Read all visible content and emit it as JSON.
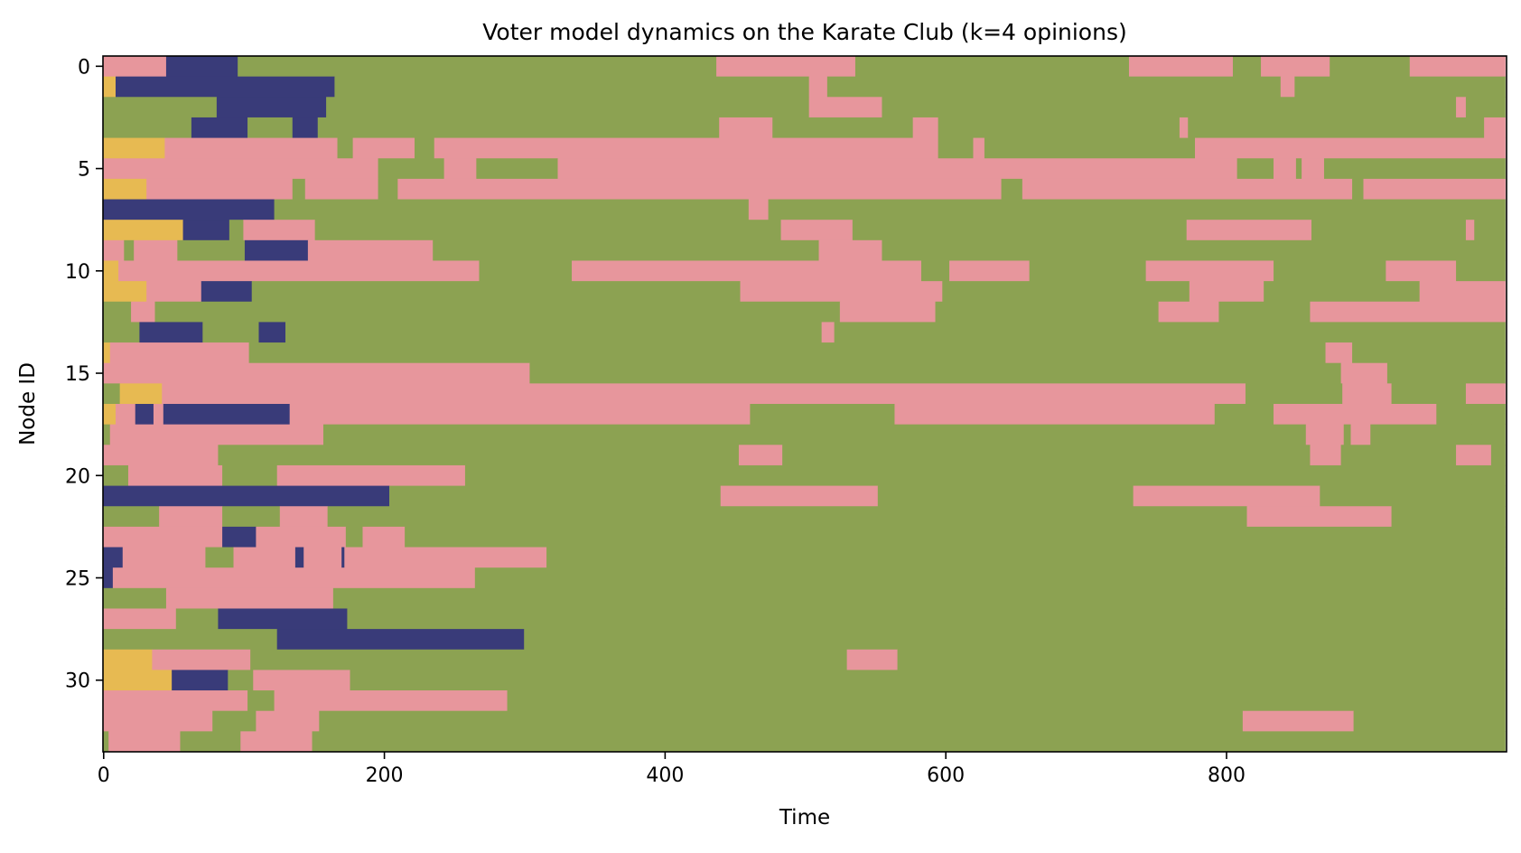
{
  "chart_data": {
    "type": "heatmap",
    "title": "Voter model dynamics on the Karate Club (k=4 opinions)",
    "xlabel": "Time",
    "ylabel": "Node ID",
    "xlim": [
      0,
      999
    ],
    "ylim": [
      0,
      33
    ],
    "y_inverted": true,
    "x_ticks": [
      0,
      200,
      400,
      600,
      800
    ],
    "y_ticks": [
      0,
      5,
      10,
      15,
      20,
      25,
      30
    ],
    "grid": false,
    "legend": "none",
    "n_opinions": 4,
    "opinion_colors": [
      "#393b79",
      "#8ca252",
      "#e7ba52",
      "#e7969c"
    ],
    "node_segments": [
      [
        [
          0,
          45,
          3
        ],
        [
          45,
          96,
          0
        ],
        [
          96,
          437,
          1
        ],
        [
          437,
          536,
          3
        ],
        [
          536,
          731,
          1
        ],
        [
          731,
          805,
          3
        ],
        [
          805,
          825,
          1
        ],
        [
          825,
          874,
          3
        ],
        [
          874,
          931,
          1
        ],
        [
          931,
          999,
          3
        ]
      ],
      [
        [
          0,
          9,
          2
        ],
        [
          9,
          165,
          0
        ],
        [
          165,
          503,
          1
        ],
        [
          503,
          516,
          3
        ],
        [
          516,
          839,
          1
        ],
        [
          839,
          849,
          3
        ],
        [
          849,
          999,
          1
        ]
      ],
      [
        [
          0,
          81,
          1
        ],
        [
          81,
          159,
          0
        ],
        [
          159,
          503,
          1
        ],
        [
          503,
          555,
          3
        ],
        [
          555,
          964,
          1
        ],
        [
          964,
          971,
          3
        ],
        [
          971,
          999,
          1
        ]
      ],
      [
        [
          0,
          63,
          1
        ],
        [
          63,
          103,
          0
        ],
        [
          103,
          135,
          1
        ],
        [
          135,
          153,
          0
        ],
        [
          153,
          439,
          1
        ],
        [
          439,
          477,
          3
        ],
        [
          477,
          577,
          1
        ],
        [
          577,
          595,
          3
        ],
        [
          595,
          767,
          1
        ],
        [
          767,
          773,
          3
        ],
        [
          773,
          984,
          1
        ],
        [
          984,
          999,
          3
        ]
      ],
      [
        [
          0,
          44,
          2
        ],
        [
          44,
          167,
          3
        ],
        [
          167,
          178,
          1
        ],
        [
          178,
          222,
          3
        ],
        [
          222,
          236,
          1
        ],
        [
          236,
          595,
          3
        ],
        [
          595,
          620,
          1
        ],
        [
          620,
          628,
          3
        ],
        [
          628,
          778,
          1
        ],
        [
          778,
          999,
          3
        ]
      ],
      [
        [
          0,
          196,
          3
        ],
        [
          196,
          243,
          1
        ],
        [
          243,
          266,
          3
        ],
        [
          266,
          324,
          1
        ],
        [
          324,
          808,
          3
        ],
        [
          808,
          834,
          1
        ],
        [
          834,
          850,
          3
        ],
        [
          850,
          854,
          1
        ],
        [
          854,
          870,
          3
        ],
        [
          870,
          999,
          1
        ]
      ],
      [
        [
          0,
          31,
          2
        ],
        [
          31,
          135,
          3
        ],
        [
          135,
          144,
          1
        ],
        [
          144,
          196,
          3
        ],
        [
          196,
          210,
          1
        ],
        [
          210,
          640,
          3
        ],
        [
          640,
          655,
          1
        ],
        [
          655,
          890,
          3
        ],
        [
          890,
          898,
          1
        ],
        [
          898,
          999,
          3
        ]
      ],
      [
        [
          0,
          122,
          0
        ],
        [
          122,
          460,
          1
        ],
        [
          460,
          474,
          3
        ],
        [
          474,
          999,
          1
        ]
      ],
      [
        [
          0,
          57,
          2
        ],
        [
          57,
          90,
          0
        ],
        [
          90,
          100,
          1
        ],
        [
          100,
          151,
          3
        ],
        [
          151,
          483,
          1
        ],
        [
          483,
          534,
          3
        ],
        [
          534,
          772,
          1
        ],
        [
          772,
          861,
          3
        ],
        [
          861,
          971,
          1
        ],
        [
          971,
          977,
          3
        ],
        [
          977,
          999,
          1
        ]
      ],
      [
        [
          0,
          15,
          3
        ],
        [
          15,
          22,
          1
        ],
        [
          22,
          53,
          3
        ],
        [
          53,
          101,
          1
        ],
        [
          101,
          146,
          0
        ],
        [
          146,
          235,
          3
        ],
        [
          235,
          510,
          1
        ],
        [
          510,
          555,
          3
        ],
        [
          555,
          999,
          1
        ]
      ],
      [
        [
          0,
          11,
          2
        ],
        [
          11,
          268,
          3
        ],
        [
          268,
          334,
          1
        ],
        [
          334,
          583,
          3
        ],
        [
          583,
          603,
          1
        ],
        [
          603,
          660,
          3
        ],
        [
          660,
          743,
          1
        ],
        [
          743,
          834,
          3
        ],
        [
          834,
          914,
          1
        ],
        [
          914,
          964,
          3
        ],
        [
          964,
          999,
          1
        ]
      ],
      [
        [
          0,
          31,
          2
        ],
        [
          31,
          70,
          3
        ],
        [
          70,
          106,
          0
        ],
        [
          106,
          454,
          1
        ],
        [
          454,
          598,
          3
        ],
        [
          598,
          774,
          1
        ],
        [
          774,
          827,
          3
        ],
        [
          827,
          938,
          1
        ],
        [
          938,
          999,
          3
        ]
      ],
      [
        [
          0,
          20,
          1
        ],
        [
          20,
          37,
          3
        ],
        [
          37,
          525,
          1
        ],
        [
          525,
          593,
          3
        ],
        [
          593,
          752,
          1
        ],
        [
          752,
          795,
          3
        ],
        [
          795,
          860,
          1
        ],
        [
          860,
          999,
          3
        ]
      ],
      [
        [
          0,
          26,
          1
        ],
        [
          26,
          71,
          0
        ],
        [
          71,
          111,
          1
        ],
        [
          111,
          130,
          0
        ],
        [
          130,
          512,
          1
        ],
        [
          512,
          521,
          3
        ],
        [
          521,
          999,
          1
        ]
      ],
      [
        [
          0,
          5,
          2
        ],
        [
          5,
          104,
          3
        ],
        [
          104,
          871,
          1
        ],
        [
          871,
          890,
          3
        ],
        [
          890,
          999,
          1
        ]
      ],
      [
        [
          0,
          304,
          3
        ],
        [
          304,
          882,
          1
        ],
        [
          882,
          915,
          3
        ],
        [
          915,
          999,
          1
        ]
      ],
      [
        [
          0,
          12,
          1
        ],
        [
          12,
          42,
          2
        ],
        [
          42,
          814,
          3
        ],
        [
          814,
          883,
          1
        ],
        [
          883,
          918,
          3
        ],
        [
          918,
          971,
          1
        ],
        [
          971,
          999,
          3
        ]
      ],
      [
        [
          0,
          9,
          2
        ],
        [
          9,
          23,
          3
        ],
        [
          23,
          36,
          0
        ],
        [
          36,
          43,
          3
        ],
        [
          43,
          133,
          0
        ],
        [
          133,
          461,
          3
        ],
        [
          461,
          564,
          1
        ],
        [
          564,
          792,
          3
        ],
        [
          792,
          834,
          1
        ],
        [
          834,
          950,
          3
        ],
        [
          950,
          975,
          1
        ],
        [
          975,
          999,
          1
        ]
      ],
      [
        [
          0,
          5,
          1
        ],
        [
          5,
          157,
          3
        ],
        [
          157,
          857,
          1
        ],
        [
          857,
          884,
          3
        ],
        [
          884,
          889,
          1
        ],
        [
          889,
          903,
          3
        ],
        [
          903,
          999,
          1
        ]
      ],
      [
        [
          0,
          82,
          3
        ],
        [
          82,
          453,
          1
        ],
        [
          453,
          484,
          3
        ],
        [
          484,
          860,
          1
        ],
        [
          860,
          882,
          3
        ],
        [
          882,
          964,
          1
        ],
        [
          964,
          989,
          3
        ],
        [
          989,
          999,
          1
        ]
      ],
      [
        [
          0,
          18,
          1
        ],
        [
          18,
          85,
          3
        ],
        [
          85,
          124,
          1
        ],
        [
          124,
          258,
          3
        ],
        [
          258,
          999,
          1
        ]
      ],
      [
        [
          0,
          204,
          0
        ],
        [
          204,
          440,
          1
        ],
        [
          440,
          552,
          3
        ],
        [
          552,
          734,
          1
        ],
        [
          734,
          867,
          3
        ],
        [
          867,
          999,
          1
        ]
      ],
      [
        [
          0,
          40,
          1
        ],
        [
          40,
          85,
          3
        ],
        [
          85,
          126,
          1
        ],
        [
          126,
          160,
          3
        ],
        [
          160,
          815,
          1
        ],
        [
          815,
          918,
          3
        ],
        [
          918,
          999,
          1
        ]
      ],
      [
        [
          0,
          85,
          3
        ],
        [
          85,
          109,
          0
        ],
        [
          109,
          173,
          3
        ],
        [
          173,
          185,
          1
        ],
        [
          185,
          215,
          3
        ],
        [
          215,
          999,
          1
        ]
      ],
      [
        [
          0,
          14,
          0
        ],
        [
          14,
          73,
          3
        ],
        [
          73,
          93,
          1
        ],
        [
          93,
          137,
          3
        ],
        [
          137,
          143,
          0
        ],
        [
          143,
          170,
          3
        ],
        [
          170,
          172,
          0
        ],
        [
          172,
          316,
          3
        ],
        [
          316,
          999,
          1
        ]
      ],
      [
        [
          0,
          7,
          0
        ],
        [
          7,
          265,
          3
        ],
        [
          265,
          999,
          1
        ]
      ],
      [
        [
          0,
          45,
          1
        ],
        [
          45,
          164,
          3
        ],
        [
          164,
          999,
          1
        ]
      ],
      [
        [
          0,
          52,
          3
        ],
        [
          52,
          82,
          1
        ],
        [
          82,
          174,
          0
        ],
        [
          174,
          999,
          1
        ]
      ],
      [
        [
          0,
          124,
          1
        ],
        [
          124,
          300,
          0
        ],
        [
          300,
          999,
          1
        ]
      ],
      [
        [
          0,
          35,
          2
        ],
        [
          35,
          105,
          3
        ],
        [
          105,
          530,
          1
        ],
        [
          530,
          566,
          3
        ],
        [
          566,
          999,
          1
        ]
      ],
      [
        [
          0,
          49,
          2
        ],
        [
          49,
          89,
          0
        ],
        [
          89,
          107,
          1
        ],
        [
          107,
          176,
          3
        ],
        [
          176,
          999,
          1
        ]
      ],
      [
        [
          0,
          103,
          3
        ],
        [
          103,
          122,
          1
        ],
        [
          122,
          288,
          3
        ],
        [
          288,
          999,
          1
        ]
      ],
      [
        [
          0,
          78,
          3
        ],
        [
          78,
          109,
          1
        ],
        [
          109,
          154,
          3
        ],
        [
          154,
          812,
          1
        ],
        [
          812,
          891,
          3
        ],
        [
          891,
          999,
          1
        ]
      ],
      [
        [
          0,
          4,
          1
        ],
        [
          4,
          55,
          3
        ],
        [
          55,
          98,
          1
        ],
        [
          98,
          149,
          3
        ],
        [
          149,
          999,
          1
        ]
      ]
    ]
  }
}
